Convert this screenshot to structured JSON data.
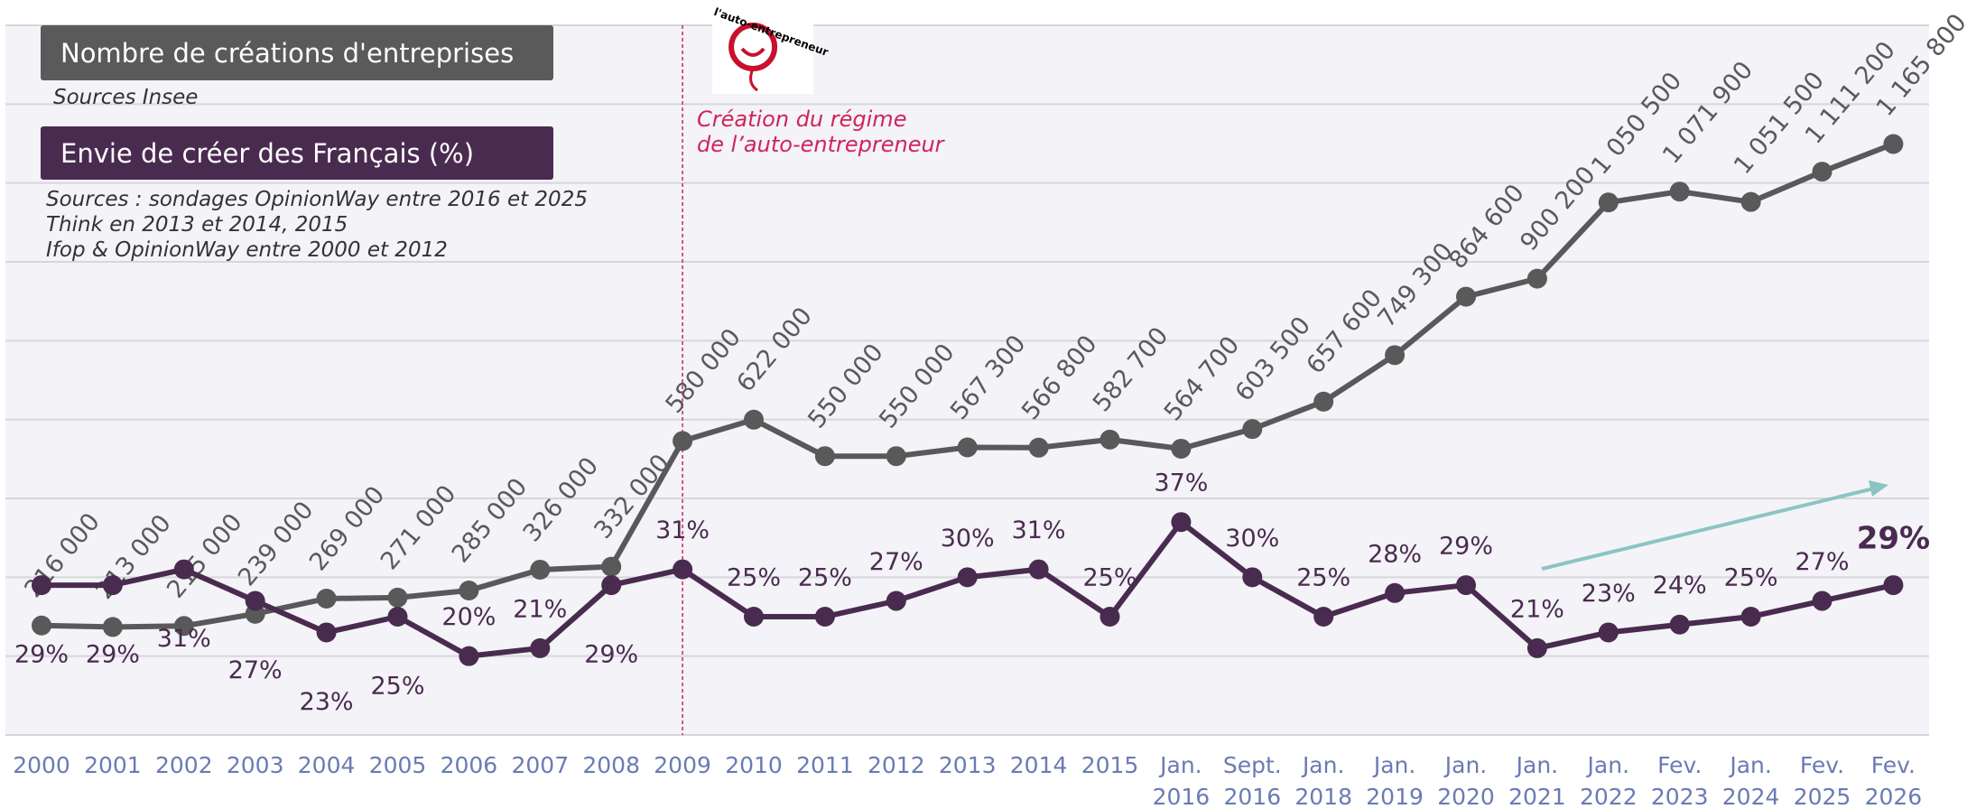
{
  "chart_data": {
    "type": "line",
    "categories": [
      "2000",
      "2001",
      "2002",
      "2003",
      "2004",
      "2005",
      "2006",
      "2007",
      "2008",
      "2009",
      "2010",
      "2011",
      "2012",
      "2013",
      "2014",
      "2015",
      "Jan. 2016",
      "Sept. 2016",
      "Jan. 2018",
      "Jan. 2019",
      "Jan. 2020",
      "Jan. 2021",
      "Jan. 2022",
      "Fev. 2023",
      "Jan. 2024",
      "Fev. 2025",
      "Fev. 2026"
    ],
    "series": [
      {
        "name": "Nombre de créations d'entreprises",
        "color": "#595959",
        "values": [
          216000,
          213000,
          215000,
          239000,
          269000,
          271000,
          285000,
          326000,
          332000,
          580000,
          622000,
          550000,
          550000,
          567300,
          566800,
          582700,
          564700,
          603500,
          657600,
          749300,
          864600,
          900200,
          1050500,
          1071900,
          1051500,
          1111200,
          1165800
        ],
        "value_labels": [
          "216 000",
          "213 000",
          "215 000",
          "239 000",
          "269 000",
          "271 000",
          "285 000",
          "326 000",
          "332 000",
          "580 000",
          "622 000",
          "550 000",
          "550 000",
          "567 300",
          "566 800",
          "582 700",
          "564 700",
          "603 500",
          "657 600",
          "749 300",
          "864 600",
          "900 200",
          "1 050 500",
          "1 071 900",
          "1 051 500",
          "1 111 200",
          "1 165 800"
        ],
        "source": "Sources Insee"
      },
      {
        "name": "Envie de créer des Français (%)",
        "color": "#4a2b50",
        "axis": "y2",
        "values": [
          29,
          29,
          31,
          27,
          23,
          25,
          20,
          21,
          29,
          31,
          25,
          25,
          27,
          30,
          31,
          25,
          37,
          30,
          25,
          28,
          29,
          21,
          23,
          24,
          25,
          27,
          29
        ],
        "value_labels": [
          "29%",
          "29%",
          "31%",
          "27%",
          "23%",
          "25%",
          "20%",
          "21%",
          "29%",
          "31%",
          "25%",
          "25%",
          "27%",
          "30%",
          "31%",
          "25%",
          "37%",
          "30%",
          "25%",
          "28%",
          "29%",
          "21%",
          "23%",
          "24%",
          "25%",
          "27%",
          "29%"
        ],
        "source": [
          "Sources : sondages OpinionWay entre 2016 et 2025",
          "Think en 2013 et 2014, 2015",
          "Ifop & OpinionWay entre 2000 et 2012"
        ]
      }
    ],
    "ylim": [
      0,
      1400000
    ],
    "y2lim": [
      10,
      100
    ],
    "y2ticks": [
      10,
      20,
      30,
      40,
      50,
      60,
      70,
      80,
      90,
      100
    ],
    "grid": true,
    "annotation": {
      "category": "2009",
      "lines": [
        "Création du régime",
        "de l’auto-entrepreneur"
      ],
      "logo": "l'auto-entrepreneur"
    }
  }
}
